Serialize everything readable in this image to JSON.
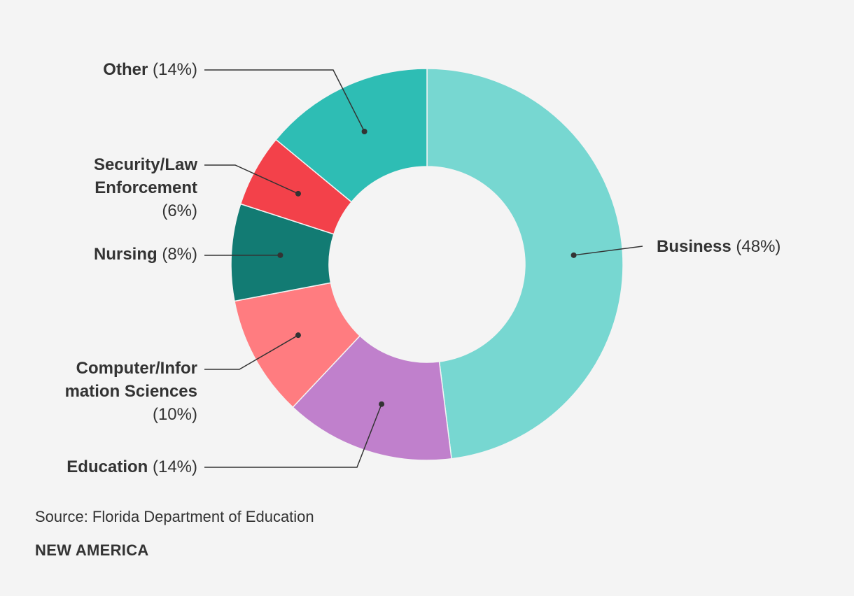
{
  "chart_data": {
    "type": "pie",
    "style": "donut",
    "slices": [
      {
        "name": "Business",
        "value": 48,
        "pct_label": "(48%)",
        "color": "#77d7d1",
        "label_lines": [
          "Business"
        ]
      },
      {
        "name": "Education",
        "value": 14,
        "pct_label": "(14%)",
        "color": "#c080cc",
        "label_lines": [
          "Education"
        ]
      },
      {
        "name": "Computer/Information Sciences",
        "value": 10,
        "pct_label": "(10%)",
        "color": "#ff7c80",
        "label_lines": [
          "Computer/Infor",
          "mation Sciences"
        ]
      },
      {
        "name": "Nursing",
        "value": 8,
        "pct_label": "(8%)",
        "color": "#127b73",
        "label_lines": [
          "Nursing"
        ]
      },
      {
        "name": "Security/Law Enforcement",
        "value": 6,
        "pct_label": "(6%)",
        "color": "#f3414a",
        "label_lines": [
          "Security/Law",
          "Enforcement"
        ]
      },
      {
        "name": "Other",
        "value": 14,
        "pct_label": "(14%)",
        "color": "#2ebdb4",
        "label_lines": [
          "Other"
        ]
      }
    ]
  },
  "source": "Source: Florida Department of Education",
  "brand": "NEW AMERICA"
}
